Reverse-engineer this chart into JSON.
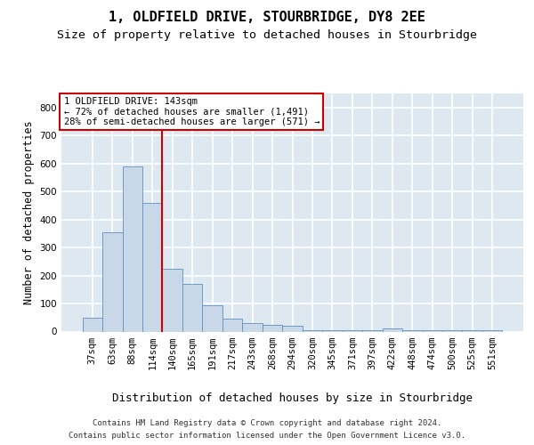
{
  "title_line1": "1, OLDFIELD DRIVE, STOURBRIDGE, DY8 2EE",
  "title_line2": "Size of property relative to detached houses in Stourbridge",
  "xlabel": "Distribution of detached houses by size in Stourbridge",
  "ylabel": "Number of detached properties",
  "footer_line1": "Contains HM Land Registry data © Crown copyright and database right 2024.",
  "footer_line2": "Contains public sector information licensed under the Open Government Licence v3.0.",
  "annotation_line1": "1 OLDFIELD DRIVE: 143sqm",
  "annotation_line2": "← 72% of detached houses are smaller (1,491)",
  "annotation_line3": "28% of semi-detached houses are larger (571) →",
  "bar_labels": [
    "37sqm",
    "63sqm",
    "88sqm",
    "114sqm",
    "140sqm",
    "165sqm",
    "191sqm",
    "217sqm",
    "243sqm",
    "268sqm",
    "294sqm",
    "320sqm",
    "345sqm",
    "371sqm",
    "397sqm",
    "422sqm",
    "448sqm",
    "474sqm",
    "500sqm",
    "525sqm",
    "551sqm"
  ],
  "bar_values": [
    50,
    355,
    590,
    460,
    225,
    170,
    95,
    45,
    30,
    25,
    20,
    5,
    5,
    5,
    5,
    10,
    5,
    5,
    5,
    5,
    5
  ],
  "bar_color": "#c8d8e8",
  "bar_edge_color": "#6090c0",
  "background_color": "#dde8f0",
  "grid_color": "#ffffff",
  "redline_color": "#cc0000",
  "annotation_box_facecolor": "#ffffff",
  "annotation_box_edgecolor": "#cc0000",
  "ylim_max": 850,
  "yticks": [
    0,
    100,
    200,
    300,
    400,
    500,
    600,
    700,
    800
  ],
  "title_fontsize": 11,
  "subtitle_fontsize": 9.5,
  "ylabel_fontsize": 8.5,
  "xlabel_fontsize": 9,
  "tick_fontsize": 7.5,
  "annotation_fontsize": 7.5,
  "footer_fontsize": 6.5
}
